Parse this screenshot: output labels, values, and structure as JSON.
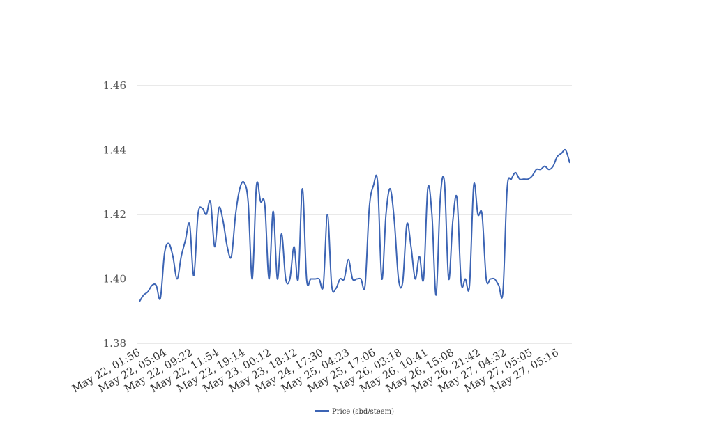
{
  "chart_data": {
    "type": "line",
    "title": "",
    "xlabel": "",
    "ylabel": "",
    "ylim": [
      1.38,
      1.46
    ],
    "y_ticks": [
      "1.38",
      "1.40",
      "1.42",
      "1.44",
      "1.46"
    ],
    "grid": "horizontal",
    "legend_position": "bottom-center",
    "x_tick_labels": [
      "May 22, 01:56",
      "May 22, 05:04",
      "May 22, 09:22",
      "May 22, 11:54",
      "May 22, 19:14",
      "May 23, 00:12",
      "May 23, 18:12",
      "May 24, 17:30",
      "May 25, 04:23",
      "May 25, 17:06",
      "May 26, 03:18",
      "May 26, 10:41",
      "May 26, 15:08",
      "May 26, 21:42",
      "May 27, 04:32",
      "May 27, 05:05",
      "May 27, 05:16"
    ],
    "series": [
      {
        "name": "Price (sbd/steem)",
        "color": "#3c64b4",
        "values": [
          1.393,
          1.395,
          1.396,
          1.398,
          1.398,
          1.394,
          1.408,
          1.411,
          1.407,
          1.4,
          1.407,
          1.412,
          1.417,
          1.401,
          1.42,
          1.422,
          1.42,
          1.424,
          1.41,
          1.422,
          1.418,
          1.41,
          1.407,
          1.42,
          1.428,
          1.43,
          1.424,
          1.4,
          1.429,
          1.424,
          1.423,
          1.4,
          1.421,
          1.4,
          1.414,
          1.4,
          1.4,
          1.41,
          1.4,
          1.428,
          1.4,
          1.4,
          1.4,
          1.4,
          1.398,
          1.42,
          1.398,
          1.397,
          1.4,
          1.4,
          1.406,
          1.4,
          1.4,
          1.4,
          1.398,
          1.422,
          1.429,
          1.43,
          1.4,
          1.42,
          1.428,
          1.418,
          1.4,
          1.399,
          1.417,
          1.41,
          1.4,
          1.407,
          1.4,
          1.428,
          1.42,
          1.395,
          1.425,
          1.43,
          1.4,
          1.418,
          1.425,
          1.399,
          1.4,
          1.398,
          1.429,
          1.42,
          1.42,
          1.4,
          1.4,
          1.4,
          1.398,
          1.396,
          1.428,
          1.431,
          1.433,
          1.431,
          1.431,
          1.431,
          1.432,
          1.434,
          1.434,
          1.435,
          1.434,
          1.435,
          1.438,
          1.439,
          1.44,
          1.436
        ]
      }
    ]
  }
}
